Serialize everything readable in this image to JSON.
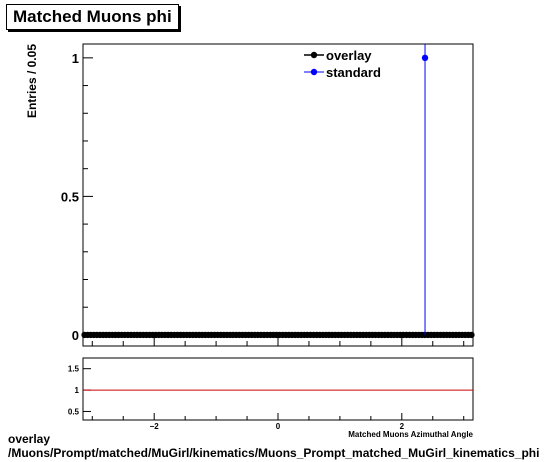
{
  "title": "Matched Muons phi",
  "footer": {
    "line1": "overlay",
    "line2": "/Muons/Prompt/matched/MuGirl/kinematics/Muons_Prompt_matched_MuGirl_kinematics_phi"
  },
  "chart_data": [
    {
      "type": "scatter",
      "title": "Matched Muons phi",
      "ylabel": "Entries / 0.05",
      "xlabel": "Matched Muons Azimuthal Angle",
      "xlim": [
        -3.15,
        3.15
      ],
      "ylim": [
        -0.04,
        1.05
      ],
      "y_ticks": [
        0,
        0.5,
        1
      ],
      "y_tick_labels": [
        "0",
        "0.5",
        "1"
      ],
      "legend": "top-right",
      "grid": false,
      "series": [
        {
          "name": "overlay",
          "color": "#000000",
          "bin_start": -3.125,
          "bin_width": 0.05,
          "bin_count": 126,
          "nonzero": {}
        },
        {
          "name": "standard",
          "color": "#0000ff",
          "points": [
            {
              "x": 2.375,
              "y": 1
            }
          ]
        }
      ]
    },
    {
      "type": "line",
      "xlim": [
        -3.15,
        3.15
      ],
      "ylim": [
        0.3,
        1.75
      ],
      "x_ticks": [
        -2,
        0,
        2
      ],
      "x_tick_labels": [
        "−2",
        "0",
        "2"
      ],
      "y_ticks": [
        0.5,
        1,
        1.5
      ],
      "y_tick_labels": [
        "0.5",
        "1",
        "1.5"
      ],
      "reference_line": 1,
      "reference_color": "#cc0000"
    }
  ]
}
